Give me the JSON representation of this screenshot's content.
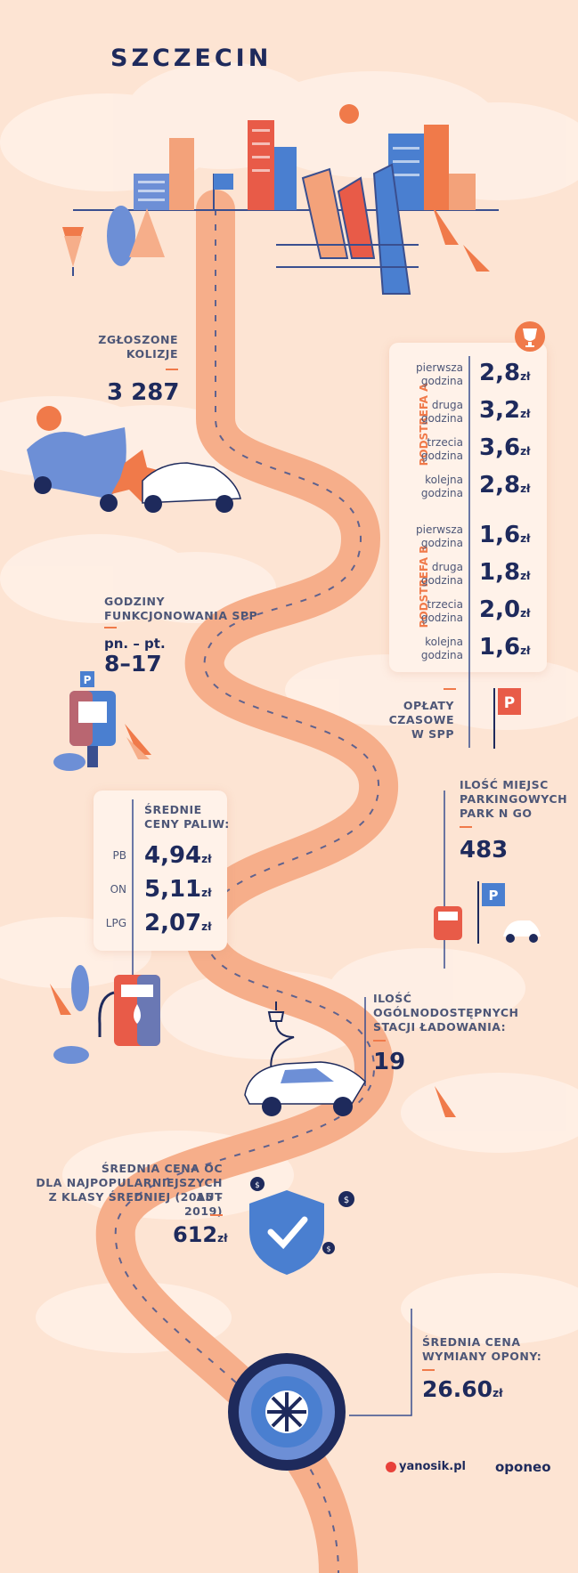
{
  "city": "SZCZECIN",
  "collisions": {
    "label_1": "ZGŁOSZONE",
    "label_2": "KOLIZJE",
    "value": "3 287"
  },
  "spp_hours": {
    "label_1": "GODZINY",
    "label_2": "FUNKCJONOWANIA SPP",
    "days": "pn. – pt.",
    "hours": "8–17"
  },
  "parking_fees": {
    "zone_a": "PODSTREFA A",
    "zone_b": "PODSTREFA B",
    "rows_a": [
      {
        "l1": "pierwsza",
        "l2": "godzina",
        "value": "2,8",
        "unit": "zł"
      },
      {
        "l1": "druga",
        "l2": "godzina",
        "value": "3,2",
        "unit": "zł"
      },
      {
        "l1": "trzecia",
        "l2": "godzina",
        "value": "3,6",
        "unit": "zł"
      },
      {
        "l1": "kolejna",
        "l2": "godzina",
        "value": "2,8",
        "unit": "zł"
      }
    ],
    "rows_b": [
      {
        "l1": "pierwsza",
        "l2": "godzina",
        "value": "1,6",
        "unit": "zł"
      },
      {
        "l1": "druga",
        "l2": "godzina",
        "value": "1,8",
        "unit": "zł"
      },
      {
        "l1": "trzecia",
        "l2": "godzina",
        "value": "2,0",
        "unit": "zł"
      },
      {
        "l1": "kolejna",
        "l2": "godzina",
        "value": "1,6",
        "unit": "zł"
      }
    ],
    "caption_1": "OPŁATY",
    "caption_2": "CZASOWE",
    "caption_3": "W SPP"
  },
  "fuel": {
    "label_1": "ŚREDNIE",
    "label_2": "CENY PALIW:",
    "rows": [
      {
        "type": "PB",
        "value": "4,94",
        "unit": "zł"
      },
      {
        "type": "ON",
        "value": "5,11",
        "unit": "zł"
      },
      {
        "type": "LPG",
        "value": "2,07",
        "unit": "zł"
      }
    ]
  },
  "park_n_go": {
    "label_1": "ILOŚĆ MIEJSC",
    "label_2": "PARKINGOWYCH",
    "label_3": "PARK N GO",
    "value": "483"
  },
  "charging": {
    "label_1": "ILOŚĆ",
    "label_2": "OGÓLNODOSTĘPNYCH",
    "label_3": "STACJI ŁADOWANIA:",
    "value": "19"
  },
  "insurance": {
    "label_1": "ŚREDNIA CENA OC",
    "label_2": "DLA NAJPOPULARNIEJSZYCH AUT",
    "label_3": "Z KLASY ŚREDNIEJ  (2015 - 2019)",
    "value": "612",
    "unit": "zł"
  },
  "tyre": {
    "label_1": "ŚREDNIA CENA",
    "label_2": "WYMIANY OPONY:",
    "value": "26.60",
    "unit": "zł"
  },
  "logos": {
    "yanosik": "yanosik.pl",
    "oponeo": "oponeo"
  },
  "icons": {
    "parking": "P",
    "dollar": "$"
  },
  "colors": {
    "navy": "#1e2a5c",
    "orange": "#f07a4a",
    "blue": "#4a7fd0",
    "road": "#f6ae8a",
    "bg": "#fde4d3"
  }
}
